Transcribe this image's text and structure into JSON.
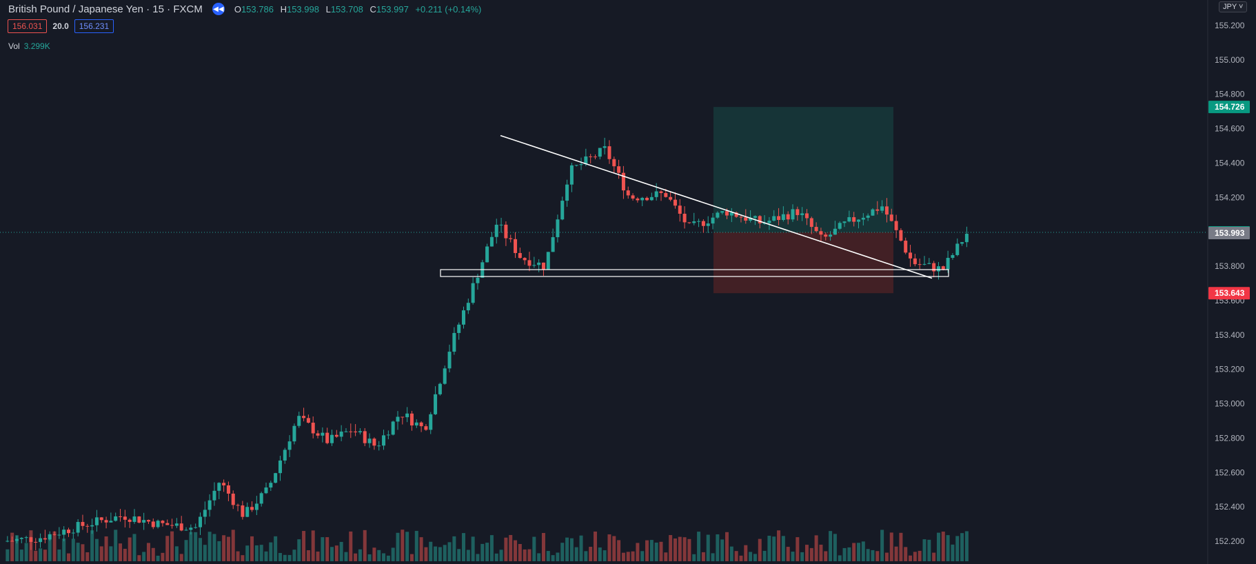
{
  "header": {
    "symbol_title": "British Pound / Japanese Yen · 15 · FXCM",
    "ohlc": {
      "o_label": "O",
      "o_value": "153.786",
      "h_label": "H",
      "h_value": "153.998",
      "l_label": "L",
      "l_value": "153.708",
      "c_label": "C",
      "c_value": "153.997",
      "change": "+0.211 (+0.14%)"
    },
    "sell_price": "156.031",
    "spread": "20.0",
    "buy_price": "156.231",
    "volume_label": "Vol",
    "volume_value": "3.299K",
    "currency_button": "JPY"
  },
  "colors": {
    "background": "#161a25",
    "up": "#26a69a",
    "down": "#ef5350",
    "profit_zone": "#163a3b",
    "loss_zone": "#4a2226",
    "line": "#ffffff"
  },
  "chart_data": {
    "type": "candlestick",
    "y_axis": {
      "ticks": [
        "155.200",
        "155.000",
        "154.800",
        "154.600",
        "154.400",
        "154.200",
        "154.000",
        "153.800",
        "153.600",
        "153.400",
        "153.200",
        "153.000",
        "152.800",
        "152.600",
        "152.400",
        "152.200"
      ],
      "min": 152.2,
      "max": 155.2
    },
    "price_tags": [
      {
        "value": "154.726",
        "color": "#089981"
      },
      {
        "value": "153.997",
        "color": "#089981"
      },
      {
        "value": "153.993",
        "color": "#787b86"
      },
      {
        "value": "153.643",
        "color": "#f23645"
      }
    ],
    "price_anchors": [
      {
        "x": 0,
        "price": 152.2
      },
      {
        "x": 0.03,
        "price": 152.22
      },
      {
        "x": 0.07,
        "price": 152.3
      },
      {
        "x": 0.1,
        "price": 152.35
      },
      {
        "x": 0.13,
        "price": 152.3
      },
      {
        "x": 0.16,
        "price": 152.28
      },
      {
        "x": 0.18,
        "price": 152.55
      },
      {
        "x": 0.2,
        "price": 152.35
      },
      {
        "x": 0.22,
        "price": 152.5
      },
      {
        "x": 0.245,
        "price": 152.92
      },
      {
        "x": 0.27,
        "price": 152.78
      },
      {
        "x": 0.29,
        "price": 152.85
      },
      {
        "x": 0.31,
        "price": 152.75
      },
      {
        "x": 0.33,
        "price": 152.95
      },
      {
        "x": 0.35,
        "price": 152.85
      },
      {
        "x": 0.37,
        "price": 153.3
      },
      {
        "x": 0.39,
        "price": 153.68
      },
      {
        "x": 0.41,
        "price": 154.05
      },
      {
        "x": 0.43,
        "price": 153.85
      },
      {
        "x": 0.45,
        "price": 153.8
      },
      {
        "x": 0.47,
        "price": 154.35
      },
      {
        "x": 0.5,
        "price": 154.48
      },
      {
        "x": 0.52,
        "price": 154.2
      },
      {
        "x": 0.55,
        "price": 154.22
      },
      {
        "x": 0.57,
        "price": 154.02
      },
      {
        "x": 0.6,
        "price": 154.12
      },
      {
        "x": 0.63,
        "price": 154.05
      },
      {
        "x": 0.66,
        "price": 154.12
      },
      {
        "x": 0.68,
        "price": 153.95
      },
      {
        "x": 0.7,
        "price": 154.05
      },
      {
        "x": 0.73,
        "price": 154.15
      },
      {
        "x": 0.755,
        "price": 153.82
      },
      {
        "x": 0.78,
        "price": 153.78
      },
      {
        "x": 0.8,
        "price": 153.99
      }
    ],
    "trendline": {
      "p1": {
        "x_frac": 0.455,
        "price": 154.56
      },
      "p2": {
        "x_frac": 1.35,
        "price": 153.73
      }
    },
    "support_zone": {
      "top": 153.78,
      "bottom": 153.74
    },
    "position": {
      "target": 154.726,
      "entry": 153.997,
      "stop": 153.643
    }
  }
}
